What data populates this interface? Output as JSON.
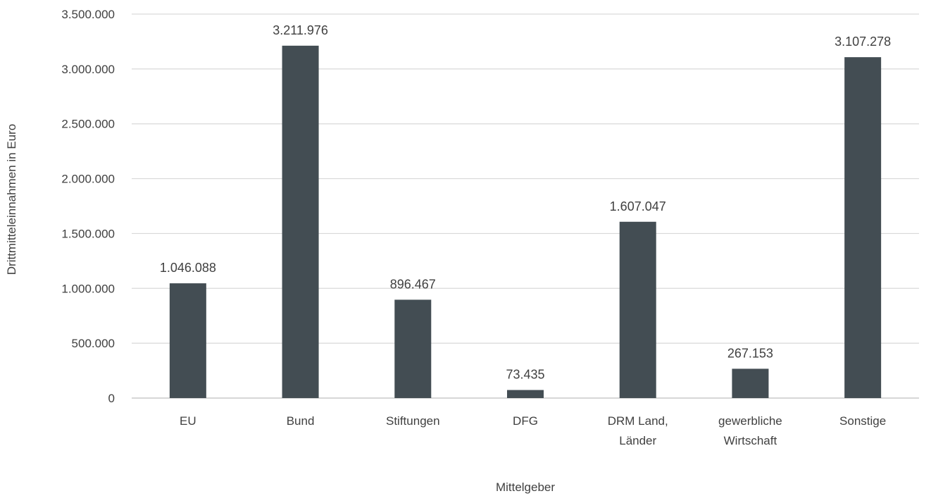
{
  "chart_data": {
    "type": "bar",
    "categories": [
      [
        "EU"
      ],
      [
        "Bund"
      ],
      [
        "Stiftungen"
      ],
      [
        "DFG"
      ],
      [
        "DRM Land,",
        "Länder"
      ],
      [
        "gewerbliche",
        "Wirtschaft"
      ],
      [
        "Sonstige"
      ]
    ],
    "values": [
      1046088,
      3211976,
      896467,
      73435,
      1607047,
      267153,
      3107278
    ],
    "value_labels": [
      "1.046.088",
      "3.211.976",
      "896.467",
      "73.435",
      "1.607.047",
      "267.153",
      "3.107.278"
    ],
    "yticks": [
      0,
      500000,
      1000000,
      1500000,
      2000000,
      2500000,
      3000000,
      3500000
    ],
    "ytick_labels": [
      "0",
      "500.000",
      "1.000.000",
      "1.500.000",
      "2.000.000",
      "2.500.000",
      "3.000.000",
      "3.500.000"
    ],
    "ylim": [
      0,
      3500000
    ],
    "xlabel": "Mittelgeber",
    "ylabel": "Drittmitteleinnahmen in Euro",
    "grid": true,
    "legend": "none",
    "bar_color": "#434d53"
  }
}
